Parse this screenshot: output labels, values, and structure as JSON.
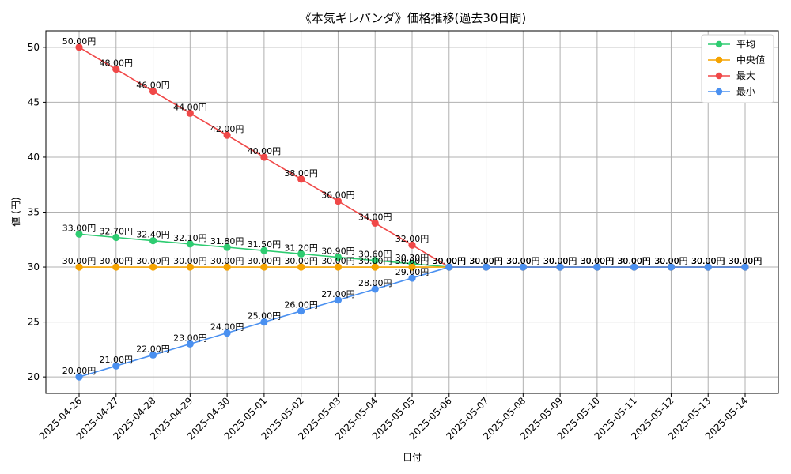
{
  "chart_data": {
    "type": "line",
    "title": "《本気ギレパンダ》価格推移(過去30日間)",
    "xlabel": "日付",
    "ylabel": "値 (円)",
    "ylim": [
      18.5,
      51.5
    ],
    "yticks": [
      20,
      25,
      30,
      35,
      40,
      45,
      50
    ],
    "grid": true,
    "legend_position": "top-right",
    "value_suffix": "円",
    "categories": [
      "2025-04-26",
      "2025-04-27",
      "2025-04-28",
      "2025-04-29",
      "2025-04-30",
      "2025-05-01",
      "2025-05-02",
      "2025-05-03",
      "2025-05-04",
      "2025-05-05",
      "2025-05-06",
      "2025-05-07",
      "2025-05-08",
      "2025-05-09",
      "2025-05-10",
      "2025-05-11",
      "2025-05-12",
      "2025-05-13",
      "2025-05-14"
    ],
    "series": [
      {
        "name": "平均",
        "key": "avg",
        "color": "#2ecc71",
        "values": [
          33.0,
          32.7,
          32.4,
          32.1,
          31.8,
          31.5,
          31.2,
          30.9,
          30.6,
          30.3,
          30.0,
          30.0,
          30.0,
          30.0,
          30.0,
          30.0,
          30.0,
          30.0,
          30.0
        ]
      },
      {
        "name": "中央値",
        "key": "median",
        "color": "#f5a300",
        "values": [
          30.0,
          30.0,
          30.0,
          30.0,
          30.0,
          30.0,
          30.0,
          30.0,
          30.0,
          30.0,
          30.0,
          30.0,
          30.0,
          30.0,
          30.0,
          30.0,
          30.0,
          30.0,
          30.0
        ]
      },
      {
        "name": "最大",
        "key": "max",
        "color": "#f04848",
        "values": [
          50.0,
          48.0,
          46.0,
          44.0,
          42.0,
          40.0,
          38.0,
          36.0,
          34.0,
          32.0,
          30.0,
          30.0,
          30.0,
          30.0,
          30.0,
          30.0,
          30.0,
          30.0,
          30.0
        ]
      },
      {
        "name": "最小",
        "key": "min",
        "color": "#4a90f0",
        "values": [
          20.0,
          21.0,
          22.0,
          23.0,
          24.0,
          25.0,
          26.0,
          27.0,
          28.0,
          29.0,
          30.0,
          30.0,
          30.0,
          30.0,
          30.0,
          30.0,
          30.0,
          30.0,
          30.0
        ]
      }
    ]
  }
}
